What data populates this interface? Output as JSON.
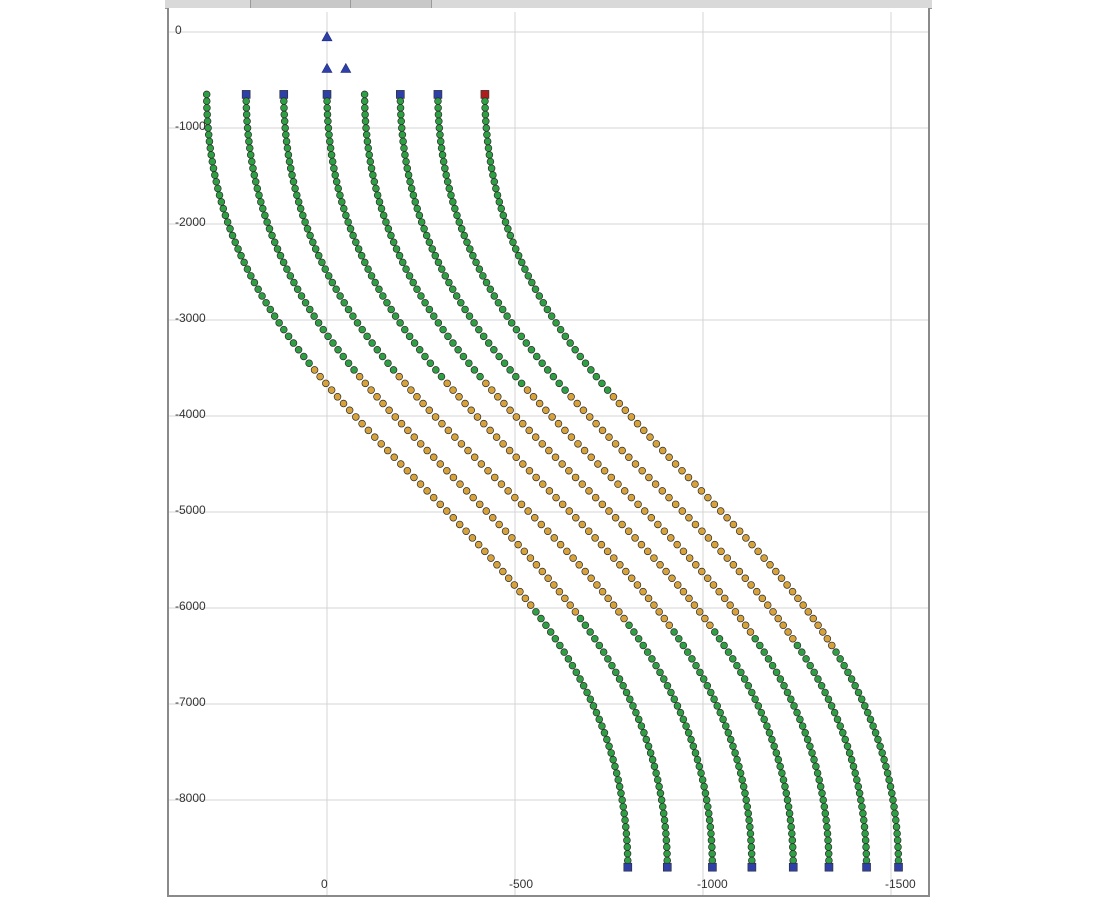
{
  "chart_data": {
    "type": "scatter",
    "title": "",
    "xlabel": "",
    "ylabel": "",
    "xlim": [
      -395,
      1530
    ],
    "ylim": [
      -9000,
      0
    ],
    "x_ticks": [
      0,
      -500,
      -1000,
      -1500
    ],
    "x_tick_labels": [
      "0",
      "-500",
      "-1000",
      "-1500"
    ],
    "y_ticks": [
      0,
      -1000,
      -2000,
      -3000,
      -4000,
      -5000,
      -6000,
      -7000,
      -8000
    ],
    "y_tick_labels": [
      "0",
      "-1000",
      "-2000",
      "-3000",
      "-4000",
      "-5000",
      "-6000",
      "-7000",
      "-8000"
    ],
    "x_axis_reversed": true,
    "grid": true,
    "legend": "none",
    "marker_colors": {
      "green": "#2ea043",
      "orange": "#d8a23a",
      "blue": "#2f3fa8",
      "red": "#b01b1b",
      "outline": "#2b2b2b"
    },
    "series": [
      {
        "start_x": -320,
        "shift": 1120,
        "blue_start": false
      },
      {
        "start_x": -215,
        "shift": 1120,
        "blue_start": true
      },
      {
        "start_x": -115,
        "shift": 1140,
        "blue_start": true
      },
      {
        "start_x": 0,
        "shift": 1130,
        "blue_start": true
      },
      {
        "start_x": 100,
        "shift": 1140,
        "blue_start": false
      },
      {
        "start_x": 195,
        "shift": 1140,
        "blue_start": true
      },
      {
        "start_x": 295,
        "shift": 1140,
        "blue_start": true
      },
      {
        "start_x": 420,
        "shift": 1100,
        "blue_start": false,
        "red_start": true
      }
    ],
    "curve": {
      "top_depth": -650,
      "bottom_depth": -8700,
      "orange_range": [
        -3500,
        -6000
      ]
    },
    "surface_markers": [
      {
        "x": 0,
        "y": -50
      },
      {
        "x": 0,
        "y": -380
      },
      {
        "x": 50,
        "y": -380
      }
    ]
  }
}
